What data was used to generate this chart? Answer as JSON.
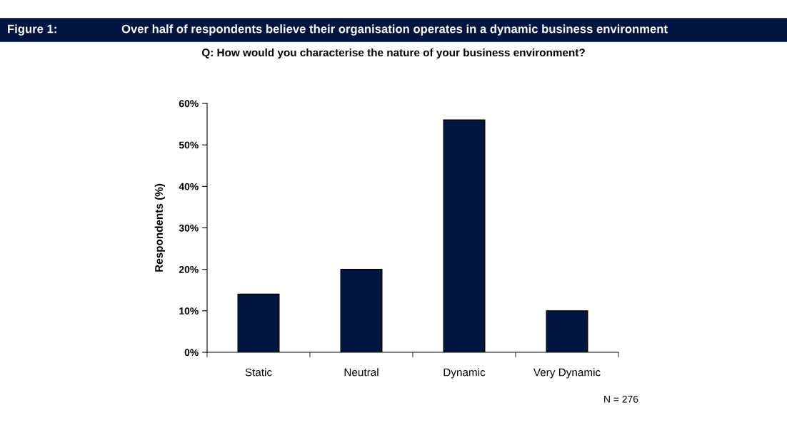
{
  "chart_data": {
    "type": "bar",
    "title": "Over half of respondents believe their organisation operates in a dynamic business environment",
    "subtitle": "Q: How would you characterise the nature of your business environment?",
    "ylabel": "Respondents (%)",
    "categories": [
      "Static",
      "Neutral",
      "Dynamic",
      "Very Dynamic"
    ],
    "values": [
      14,
      20,
      56,
      10
    ],
    "color": "#001540",
    "ylim": [
      0,
      60
    ],
    "yticks": [
      {
        "value": 0,
        "label": "0%"
      },
      {
        "value": 10,
        "label": "10%"
      },
      {
        "value": 20,
        "label": "20%"
      },
      {
        "value": 30,
        "label": "30%"
      },
      {
        "value": 40,
        "label": "40%"
      },
      {
        "value": 50,
        "label": "50%"
      },
      {
        "value": 60,
        "label": "60%"
      }
    ],
    "grid": false,
    "annotations": [
      "Figure 1:",
      "N = 276"
    ]
  }
}
